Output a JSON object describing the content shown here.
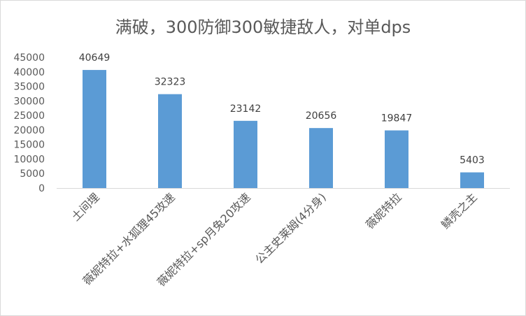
{
  "chart_data": {
    "type": "bar",
    "title": "满破，300防御300敏捷敌人，对单dps",
    "categories": [
      "土间埋",
      "薇妮特拉+水狐狸45攻速",
      "薇妮特拉+sp月兔20攻速",
      "公主史莱姆(4分身)",
      "薇妮特拉",
      "鳞壳之主"
    ],
    "values": [
      40649,
      32323,
      23142,
      20656,
      19847,
      5403
    ],
    "data_labels": [
      "40649",
      "32323",
      "23142",
      "20656",
      "19847",
      "5403"
    ],
    "xlabel": "",
    "ylabel": "",
    "ylim": [
      0,
      45000
    ],
    "yticks": [
      "0",
      "5000",
      "10000",
      "15000",
      "20000",
      "25000",
      "30000",
      "35000",
      "40000",
      "45000"
    ],
    "grid": false,
    "legend": "none",
    "bar_color": "#5b9bd5",
    "axis_color": "#d9d9d9"
  }
}
